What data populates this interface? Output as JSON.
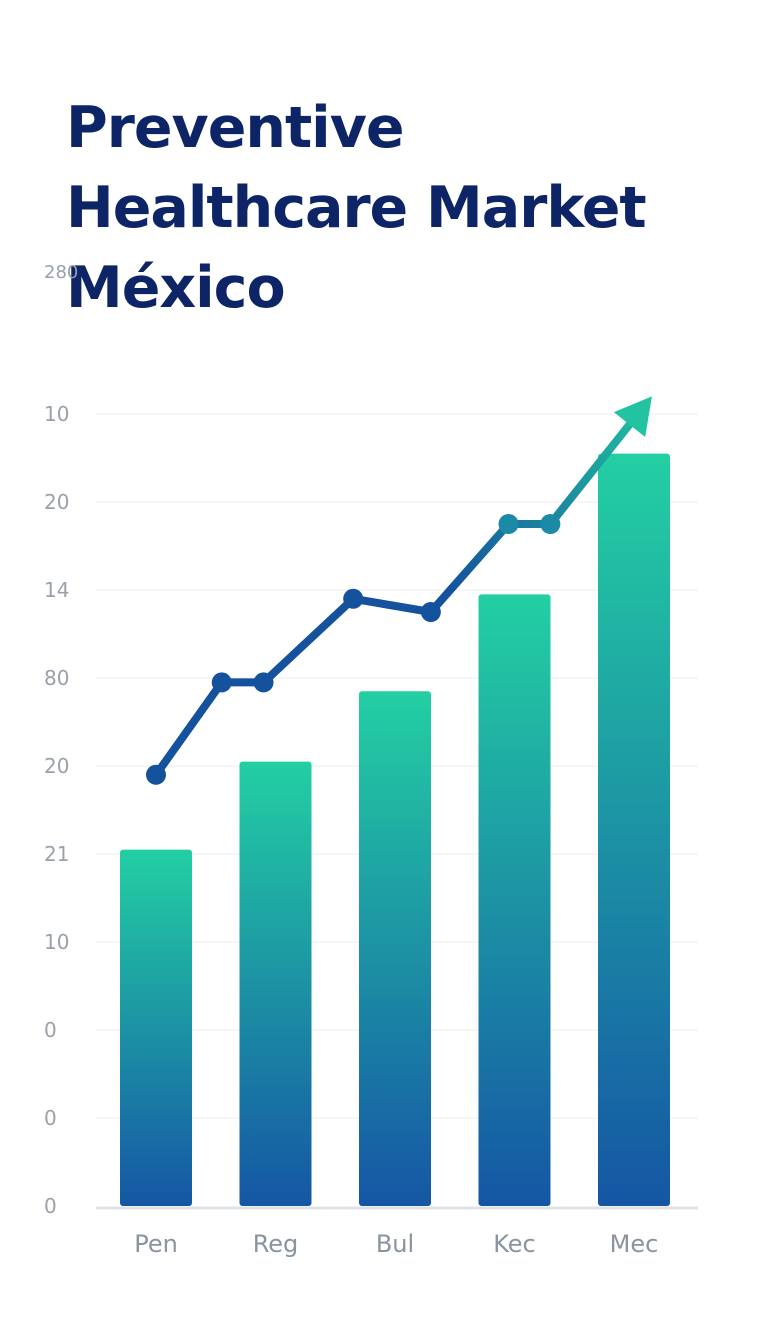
{
  "colors": {
    "title": "#0d2566",
    "gridline": "#eceef1",
    "axis": "#dfe3e8",
    "bar_top": "#23cfa3",
    "bar_bottom": "#1556a4",
    "line": "#14529e",
    "arrow": "#22c3a0"
  },
  "chart_data": {
    "type": "bar",
    "title": [
      "Preventive",
      "Healthcare Market",
      "México"
    ],
    "xlabel": "",
    "ylabel": "",
    "categories": [
      "Pen",
      "Reg",
      "Bul",
      "Kec",
      "Mec"
    ],
    "y_tick_labels": [
      "0",
      "0",
      "0",
      "10",
      "21",
      "20",
      "80",
      "14",
      "20",
      "10",
      "280"
    ],
    "y_tick_values": [
      0,
      1,
      2,
      3,
      4,
      5,
      6,
      7,
      8,
      9,
      10
    ],
    "ylim": [
      0,
      10
    ],
    "grid": true,
    "legend": "none",
    "bar_values": [
      4.05,
      5.05,
      5.85,
      6.95,
      8.55
    ],
    "line": {
      "points": [
        {
          "x": 0.0,
          "y": 4.9
        },
        {
          "x": 0.55,
          "y": 5.95
        },
        {
          "x": 0.9,
          "y": 5.95
        },
        {
          "x": 1.65,
          "y": 6.9
        },
        {
          "x": 2.3,
          "y": 6.75
        },
        {
          "x": 2.95,
          "y": 7.75
        },
        {
          "x": 3.3,
          "y": 7.75
        }
      ],
      "arrow_to": {
        "x": 4.15,
        "y": 9.2
      }
    }
  }
}
